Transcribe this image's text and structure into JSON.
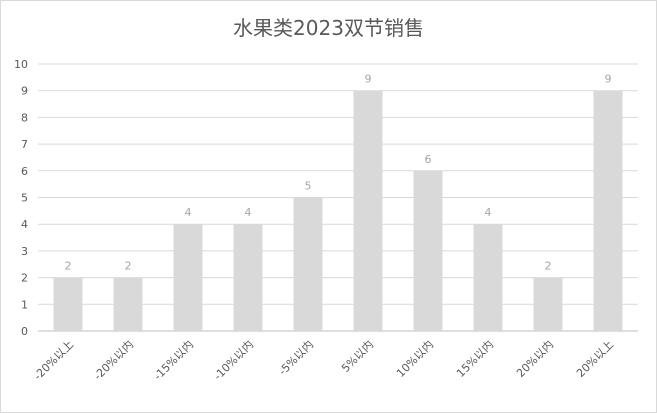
{
  "chart_data": {
    "type": "bar",
    "title": "水果类2023双节销售",
    "categories": [
      "-20%以上",
      "-20%以内",
      "-15%以内",
      "-10%以内",
      "-5%以内",
      "5%以内",
      "10%以内",
      "15%以内",
      "20%以内",
      "20%以上"
    ],
    "values": [
      2,
      2,
      4,
      4,
      5,
      9,
      6,
      4,
      2,
      9
    ],
    "ylim": [
      0,
      10
    ],
    "yticks": [
      0,
      1,
      2,
      3,
      4,
      5,
      6,
      7,
      8,
      9,
      10
    ],
    "grid": true,
    "bar_color": "#d9d9d9",
    "data_labels": true,
    "legend": "none"
  }
}
